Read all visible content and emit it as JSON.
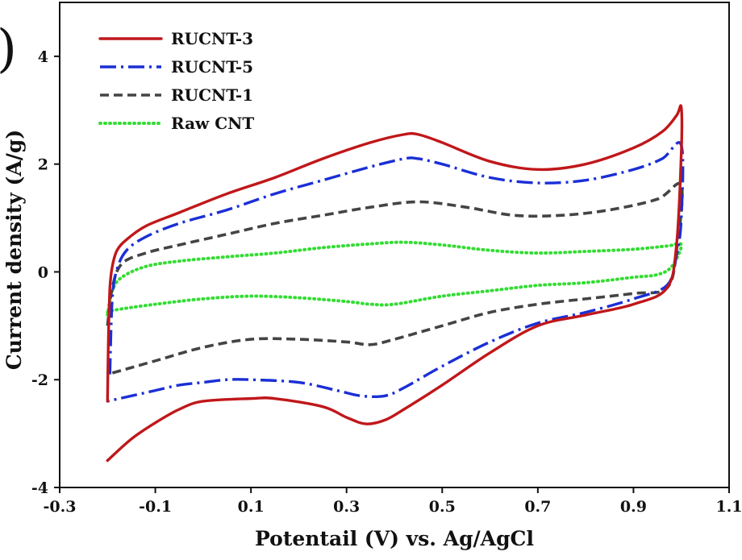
{
  "chart_data": {
    "type": "line",
    "panel_label": ")",
    "title": "",
    "xlabel": "Potentail (V) vs. Ag/AgCl",
    "ylabel": "Current density (A/g)",
    "xlim": [
      -0.3,
      1.1
    ],
    "ylim": [
      -4,
      5
    ],
    "xticks": [
      "-0.3",
      "-0.1",
      "0.1",
      "0.3",
      "0.5",
      "0.7",
      "0.9",
      "1.1"
    ],
    "yticks": [
      "-4",
      "-2",
      "0",
      "2",
      "4"
    ],
    "grid": false,
    "legend_position": "top-left",
    "series": [
      {
        "name": "RUCNT-3",
        "color": "#c0171a",
        "dash": "solid",
        "x": [
          -0.2,
          -0.198,
          -0.195,
          -0.19,
          -0.18,
          -0.16,
          -0.12,
          -0.05,
          0.05,
          0.15,
          0.25,
          0.35,
          0.42,
          0.45,
          0.5,
          0.6,
          0.7,
          0.8,
          0.9,
          0.96,
          0.99,
          1.0,
          1.0,
          0.99,
          0.97,
          0.9,
          0.8,
          0.7,
          0.6,
          0.5,
          0.42,
          0.38,
          0.34,
          0.3,
          0.25,
          0.15,
          0.1,
          0.0,
          -0.05,
          -0.1,
          -0.15,
          -0.2
        ],
        "y": [
          -2.4,
          -1.2,
          -0.3,
          0.1,
          0.4,
          0.6,
          0.85,
          1.1,
          1.45,
          1.75,
          2.1,
          2.4,
          2.55,
          2.55,
          2.4,
          2.05,
          1.9,
          2.0,
          2.3,
          2.6,
          2.9,
          3.05,
          2.2,
          0.5,
          -0.3,
          -0.6,
          -0.8,
          -1.0,
          -1.5,
          -2.1,
          -2.55,
          -2.75,
          -2.82,
          -2.7,
          -2.5,
          -2.35,
          -2.35,
          -2.4,
          -2.55,
          -2.8,
          -3.1,
          -3.5
        ]
      },
      {
        "name": "RUCNT-5",
        "color": "#1a2fd6",
        "dash": "dashdot",
        "x": [
          -0.195,
          -0.19,
          -0.18,
          -0.16,
          -0.12,
          -0.05,
          0.05,
          0.15,
          0.25,
          0.35,
          0.42,
          0.45,
          0.5,
          0.6,
          0.7,
          0.8,
          0.9,
          0.96,
          1.0,
          1.0,
          0.99,
          0.97,
          0.9,
          0.8,
          0.7,
          0.6,
          0.5,
          0.42,
          0.38,
          0.33,
          0.28,
          0.2,
          0.1,
          0.05,
          0.0,
          -0.05,
          -0.1,
          -0.15,
          -0.2
        ],
        "y": [
          -1.9,
          -0.5,
          0.05,
          0.4,
          0.65,
          0.9,
          1.15,
          1.45,
          1.7,
          1.95,
          2.1,
          2.1,
          2.0,
          1.75,
          1.65,
          1.7,
          1.9,
          2.1,
          2.35,
          1.0,
          0.3,
          -0.25,
          -0.5,
          -0.75,
          -0.95,
          -1.3,
          -1.75,
          -2.15,
          -2.3,
          -2.3,
          -2.2,
          -2.05,
          -2.0,
          -2.0,
          -2.05,
          -2.1,
          -2.2,
          -2.3,
          -2.4
        ]
      },
      {
        "name": "RUCNT-1",
        "color": "#444444",
        "dash": "dash",
        "x": [
          -0.2,
          -0.19,
          -0.17,
          -0.12,
          -0.05,
          0.05,
          0.15,
          0.25,
          0.35,
          0.45,
          0.55,
          0.65,
          0.75,
          0.85,
          0.95,
          1.0,
          0.99,
          0.97,
          0.9,
          0.8,
          0.7,
          0.6,
          0.5,
          0.4,
          0.35,
          0.3,
          0.2,
          0.1,
          0.0,
          -0.1,
          -0.2
        ],
        "y": [
          -1.0,
          -0.3,
          0.15,
          0.35,
          0.5,
          0.7,
          0.9,
          1.05,
          1.2,
          1.3,
          1.2,
          1.05,
          1.05,
          1.15,
          1.35,
          1.6,
          0.4,
          -0.3,
          -0.4,
          -0.5,
          -0.6,
          -0.75,
          -1.0,
          -1.25,
          -1.35,
          -1.3,
          -1.25,
          -1.25,
          -1.4,
          -1.65,
          -1.9
        ]
      },
      {
        "name": "Raw CNT",
        "color": "#33dd33",
        "dash": "dot",
        "x": [
          -0.2,
          -0.19,
          -0.17,
          -0.12,
          -0.05,
          0.05,
          0.15,
          0.25,
          0.35,
          0.42,
          0.5,
          0.6,
          0.7,
          0.8,
          0.9,
          0.97,
          1.0,
          0.98,
          0.95,
          0.9,
          0.8,
          0.7,
          0.6,
          0.5,
          0.4,
          0.35,
          0.3,
          0.2,
          0.1,
          0.0,
          -0.1,
          -0.18,
          -0.2
        ],
        "y": [
          -0.8,
          -0.35,
          -0.1,
          0.1,
          0.2,
          0.28,
          0.35,
          0.45,
          0.52,
          0.55,
          0.5,
          0.4,
          0.35,
          0.38,
          0.42,
          0.48,
          0.5,
          0.1,
          -0.05,
          -0.1,
          -0.2,
          -0.25,
          -0.35,
          -0.45,
          -0.6,
          -0.6,
          -0.55,
          -0.48,
          -0.45,
          -0.5,
          -0.6,
          -0.7,
          -0.75
        ]
      }
    ]
  }
}
